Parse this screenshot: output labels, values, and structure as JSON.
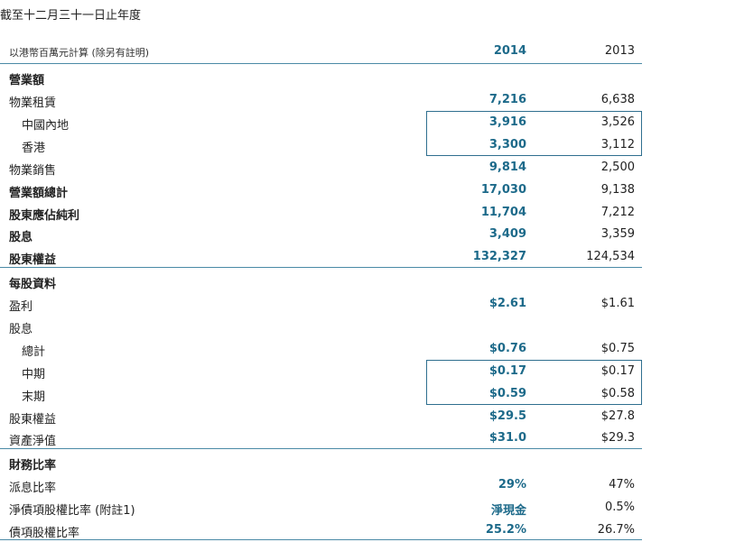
{
  "title": "截至十二月三十一日止年度",
  "header": {
    "label": "以港幣百萬元計算 (除另有註明)",
    "col_2014": "2014",
    "col_2013": "2013"
  },
  "sections": [
    {
      "name": "營業額",
      "rows": [
        {
          "label": "物業租賃",
          "v2014": "7,216",
          "v2013": "6,638",
          "indent": false,
          "bold": false
        },
        {
          "label": "中國內地",
          "v2014": "3,916",
          "v2013": "3,526",
          "indent": true,
          "bold": false
        },
        {
          "label": "香港",
          "v2014": "3,300",
          "v2013": "3,112",
          "indent": true,
          "bold": false
        },
        {
          "label": "物業銷售",
          "v2014": "9,814",
          "v2013": "2,500",
          "indent": false,
          "bold": false
        },
        {
          "label": "營業額總計",
          "v2014": "17,030",
          "v2013": "9,138",
          "indent": false,
          "bold": true
        },
        {
          "label": "股東應佔純利",
          "v2014": "11,704",
          "v2013": "7,212",
          "indent": false,
          "bold": true
        },
        {
          "label": "股息",
          "v2014": "3,409",
          "v2013": "3,359",
          "indent": false,
          "bold": true
        },
        {
          "label": "股東權益",
          "v2014": "132,327",
          "v2013": "124,534",
          "indent": false,
          "bold": true
        }
      ]
    },
    {
      "name": "每股資料",
      "rows": [
        {
          "label": "盈利",
          "v2014": "$2.61",
          "v2013": "$1.61",
          "indent": false,
          "bold": false
        },
        {
          "label": "股息",
          "v2014": "",
          "v2013": "",
          "indent": false,
          "bold": false
        },
        {
          "label": "總計",
          "v2014": "$0.76",
          "v2013": "$0.75",
          "indent": true,
          "bold": false
        },
        {
          "label": "中期",
          "v2014": "$0.17",
          "v2013": "$0.17",
          "indent": true,
          "bold": false
        },
        {
          "label": "末期",
          "v2014": "$0.59",
          "v2013": "$0.58",
          "indent": true,
          "bold": false
        },
        {
          "label": "股東權益",
          "v2014": "$29.5",
          "v2013": "$27.8",
          "indent": false,
          "bold": false
        },
        {
          "label": "資產淨值",
          "v2014": "$31.0",
          "v2013": "$29.3",
          "indent": false,
          "bold": false
        }
      ]
    },
    {
      "name": "財務比率",
      "rows": [
        {
          "label": "派息比率",
          "v2014": "29%",
          "v2013": "47%",
          "indent": false,
          "bold": false
        },
        {
          "label": "淨債項股權比率 (附註1)",
          "v2014": "淨現金",
          "v2013": "0.5%",
          "indent": false,
          "bold": false
        },
        {
          "label": "債項股權比率",
          "v2014": "25.2%",
          "v2013": "26.7%",
          "indent": false,
          "bold": false
        }
      ]
    }
  ],
  "colors": {
    "accent": "#1d6a8a",
    "rule": "#4a8aa6",
    "box": "#2f6f8f"
  }
}
